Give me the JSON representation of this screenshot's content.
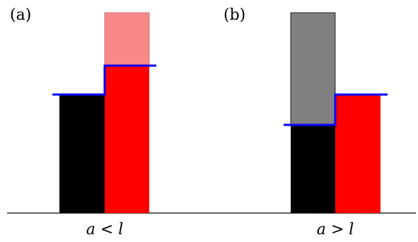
{
  "panels": [
    {
      "label": "(a)",
      "condition": "a < l",
      "colors": {
        "left": "#000000",
        "right": "#ff0000",
        "ghost": "#f88888",
        "level": "#0000ff"
      }
    },
    {
      "label": "(b)",
      "condition": "a > l",
      "colors": {
        "left": "#000000",
        "right": "#ff0000",
        "ghost": "#808080",
        "level": "#0000ff"
      }
    }
  ]
}
